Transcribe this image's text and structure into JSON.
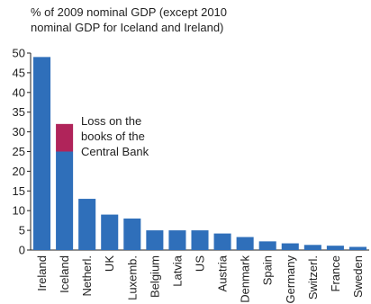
{
  "chart_data": {
    "type": "bar",
    "stacked": true,
    "title": "",
    "subtitle_lines": [
      "% of 2009 nominal GDP (except 2010",
      "nominal GDP for Iceland and Ireland)"
    ],
    "xlabel": "",
    "ylabel": "",
    "ylim": [
      0,
      50
    ],
    "yticks": [
      "50",
      "45",
      "40",
      "35",
      "30",
      "25",
      "20",
      "15",
      "10",
      "5",
      "0"
    ],
    "grid": false,
    "categories": [
      "Ireland",
      "Iceland",
      "Netherl.",
      "UK",
      "Luxemb.",
      "Belgium",
      "Latvia",
      "US",
      "Austria",
      "Denmark",
      "Spain",
      "Germany",
      "Switzerl.",
      "France",
      "Sweden"
    ],
    "series": [
      {
        "color": "#2f6fba",
        "values": [
          49,
          25,
          13,
          9,
          8,
          5,
          5,
          5,
          4.2,
          3.3,
          2.2,
          1.7,
          1.3,
          1.1,
          0.8
        ]
      },
      {
        "color": "#b0245a",
        "values": [
          0,
          7,
          0,
          0,
          0,
          0,
          0,
          0,
          0,
          0,
          0,
          0,
          0,
          0,
          0
        ]
      }
    ],
    "annotations": [
      {
        "lines": [
          "Loss on the",
          "books of the",
          "Central Bank"
        ]
      }
    ]
  }
}
